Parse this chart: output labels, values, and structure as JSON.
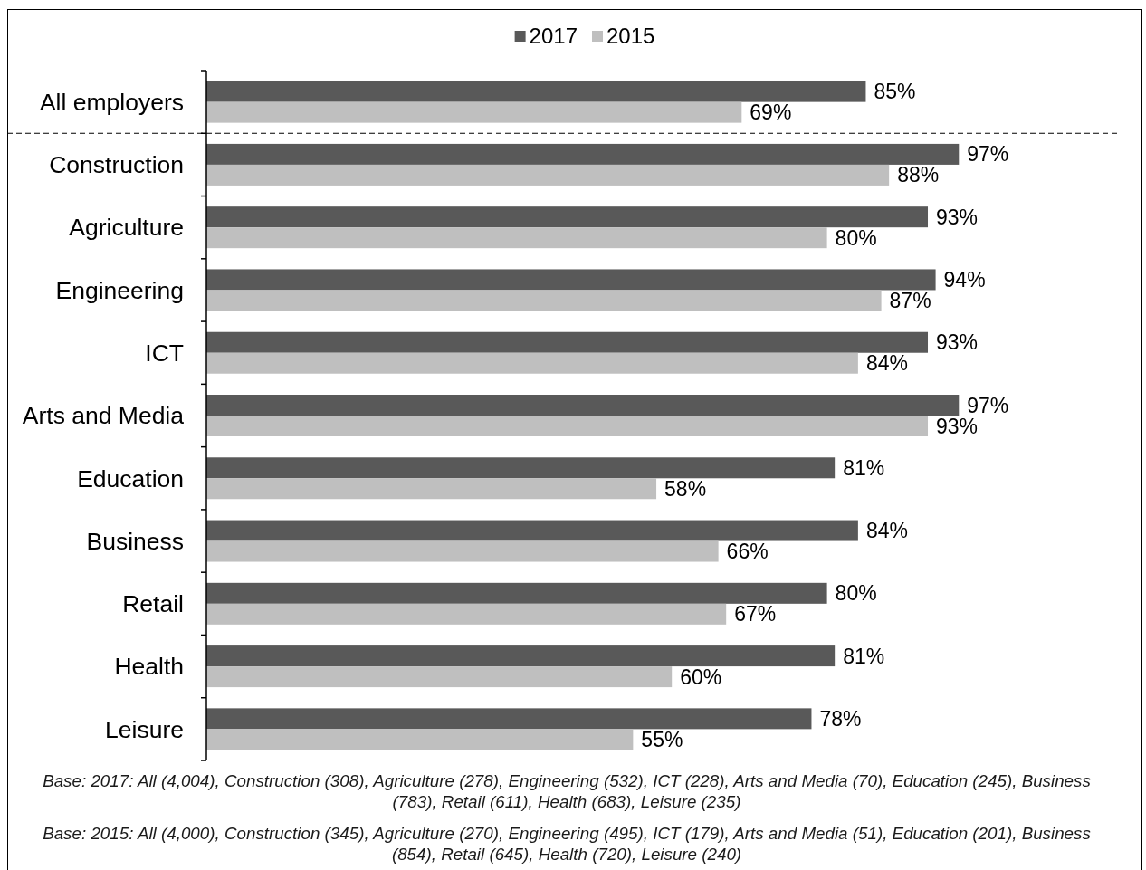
{
  "chart_data": {
    "type": "bar",
    "orientation": "horizontal",
    "categories": [
      "All employers",
      "Construction",
      "Agriculture",
      "Engineering",
      "ICT",
      "Arts and Media",
      "Education",
      "Business",
      "Retail",
      "Health",
      "Leisure"
    ],
    "series": [
      {
        "name": "2017",
        "color": "#595959",
        "values": [
          85,
          97,
          93,
          94,
          93,
          97,
          81,
          84,
          80,
          81,
          78
        ],
        "value_labels": [
          "85%",
          "97%",
          "93%",
          "94%",
          "93%",
          "97%",
          "81%",
          "84%",
          "80%",
          "81%",
          "78%"
        ]
      },
      {
        "name": "2015",
        "color": "#bfbfbf",
        "values": [
          69,
          88,
          80,
          87,
          84,
          93,
          58,
          66,
          67,
          60,
          55
        ],
        "value_labels": [
          "69%",
          "88%",
          "80%",
          "87%",
          "84%",
          "93%",
          "58%",
          "66%",
          "67%",
          "60%",
          "55%"
        ]
      }
    ],
    "legend": "top",
    "annotations": [
      "Base: 2017: All (4,004), Construction (308), Agriculture (278), Engineering (532), ICT (228), Arts and Media (70), Education (245), Business (783), Retail (611), Health (683), Leisure (235)",
      "Base: 2015: All (4,000), Construction (345), Agriculture (270), Engineering (495), ICT (179), Arts and Media (51), Education (201), Business (854), Retail (645), Health (720), Leisure (240)"
    ]
  }
}
